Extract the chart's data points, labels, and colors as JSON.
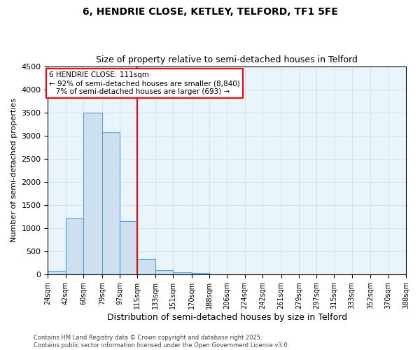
{
  "title1": "6, HENDRIE CLOSE, KETLEY, TELFORD, TF1 5FE",
  "title2": "Size of property relative to semi-detached houses in Telford",
  "xlabel": "Distribution of semi-detached houses by size in Telford",
  "ylabel": "Number of semi-detached properties",
  "bin_labels": [
    "24sqm",
    "42sqm",
    "60sqm",
    "79sqm",
    "97sqm",
    "115sqm",
    "133sqm",
    "151sqm",
    "170sqm",
    "188sqm",
    "206sqm",
    "224sqm",
    "242sqm",
    "261sqm",
    "279sqm",
    "297sqm",
    "315sqm",
    "333sqm",
    "352sqm",
    "370sqm",
    "388sqm"
  ],
  "bin_edges": [
    24,
    42,
    60,
    79,
    97,
    115,
    133,
    151,
    170,
    188,
    206,
    224,
    242,
    261,
    279,
    297,
    315,
    333,
    352,
    370,
    388
  ],
  "counts": [
    75,
    1220,
    3500,
    3080,
    1160,
    340,
    100,
    55,
    30,
    5,
    0,
    0,
    0,
    0,
    0,
    0,
    0,
    0,
    0,
    0
  ],
  "bar_facecolor": "#cce0f0",
  "bar_edgecolor": "#5a9fd4",
  "property_line_x": 115,
  "annotation_text_line1": "6 HENDRIE CLOSE: 111sqm",
  "annotation_text_line2": "← 92% of semi-detached houses are smaller (8,840)",
  "annotation_text_line3": "   7% of semi-detached houses are larger (693) →",
  "annotation_box_edgecolor": "red",
  "vline_color": "red",
  "ylim": [
    0,
    4500
  ],
  "yticks": [
    0,
    500,
    1000,
    1500,
    2000,
    2500,
    3000,
    3500,
    4000,
    4500
  ],
  "grid_color": "#d0e4f0",
  "background_color": "#eaf4fb",
  "footnote1": "Contains HM Land Registry data © Crown copyright and database right 2025.",
  "footnote2": "Contains public sector information licensed under the Open Government Licence v3.0."
}
